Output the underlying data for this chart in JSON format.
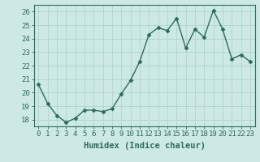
{
  "x": [
    0,
    1,
    2,
    3,
    4,
    5,
    6,
    7,
    8,
    9,
    10,
    11,
    12,
    13,
    14,
    15,
    16,
    17,
    18,
    19,
    20,
    21,
    22,
    23
  ],
  "y": [
    20.6,
    19.2,
    18.3,
    17.8,
    18.1,
    18.7,
    18.7,
    18.6,
    18.8,
    19.9,
    20.9,
    22.3,
    24.3,
    24.8,
    24.6,
    25.5,
    23.3,
    24.7,
    24.1,
    26.1,
    24.7,
    22.5,
    22.8,
    22.3
  ],
  "line_color": "#2e6b5e",
  "marker": "D",
  "marker_size": 2.5,
  "bg_color": "#cce9e5",
  "grid_color": "#b0d4cf",
  "xlabel": "Humidex (Indice chaleur)",
  "ylim": [
    17.5,
    26.5
  ],
  "xlim": [
    -0.5,
    23.5
  ],
  "yticks": [
    18,
    19,
    20,
    21,
    22,
    23,
    24,
    25,
    26
  ],
  "xticks": [
    0,
    1,
    2,
    3,
    4,
    5,
    6,
    7,
    8,
    9,
    10,
    11,
    12,
    13,
    14,
    15,
    16,
    17,
    18,
    19,
    20,
    21,
    22,
    23
  ],
  "xtick_labels": [
    "0",
    "1",
    "2",
    "3",
    "4",
    "5",
    "6",
    "7",
    "8",
    "9",
    "10",
    "11",
    "12",
    "13",
    "14",
    "15",
    "16",
    "17",
    "18",
    "19",
    "20",
    "21",
    "22",
    "23"
  ],
  "tick_color": "#2e6b5e",
  "label_fontsize": 7.5,
  "tick_fontsize": 6.5,
  "line_width": 1.0
}
